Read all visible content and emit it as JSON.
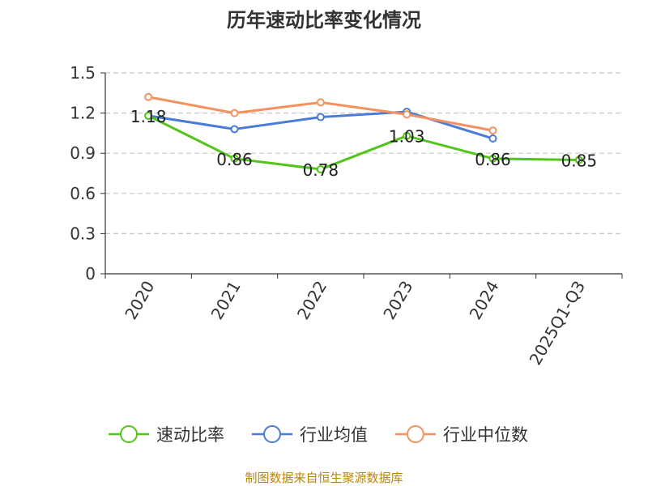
{
  "chart_data": {
    "type": "line",
    "title": "历年速动比率变化情况",
    "categories": [
      "2020",
      "2021",
      "2022",
      "2023",
      "2024",
      "2025Q1-Q3"
    ],
    "ylim": [
      0,
      1.5
    ],
    "yticks": [
      "0",
      "0.3",
      "0.6",
      "0.9",
      "1.2",
      "1.5"
    ],
    "grid": true,
    "series": [
      {
        "name": "速动比率",
        "color": "#52c41a",
        "values": [
          1.18,
          0.86,
          0.78,
          1.03,
          0.86,
          0.85
        ],
        "labels": [
          "1.18",
          "0.86",
          "0.78",
          "1.03",
          "0.86",
          "0.85"
        ]
      },
      {
        "name": "行业均值",
        "color": "#4a7bd8",
        "values": [
          1.18,
          1.08,
          1.17,
          1.21,
          1.01,
          null
        ]
      },
      {
        "name": "行业中位数",
        "color": "#f4915e",
        "values": [
          1.32,
          1.2,
          1.28,
          1.19,
          1.07,
          null
        ]
      }
    ]
  },
  "source": "制图数据来自恒生聚源数据库"
}
